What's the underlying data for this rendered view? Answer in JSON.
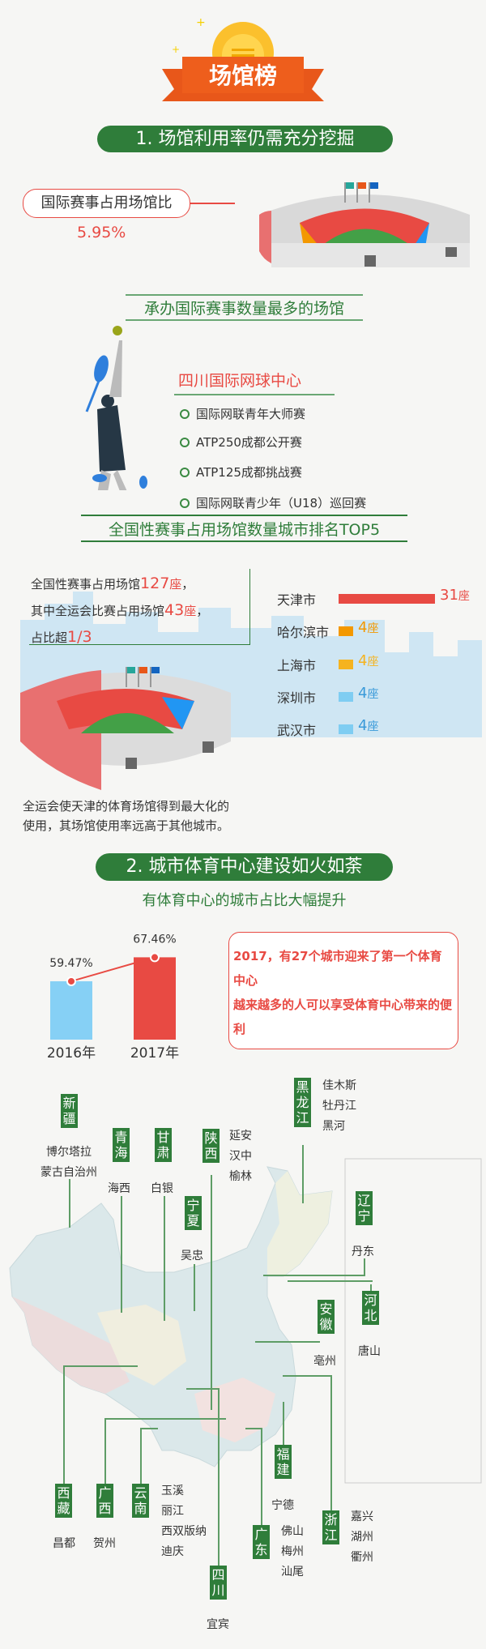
{
  "banner": {
    "title": "场馆榜"
  },
  "section1": {
    "heading": "1. 场馆利用率仍需充分挖掘",
    "callout": "国际赛事占用场馆比",
    "callout_value": "5.95%",
    "most_events": {
      "heading": "承办国际赛事数量最多的场馆",
      "venue": "四川国际网球中心",
      "events": [
        "国际网联青年大师赛",
        "ATP250成都公开赛",
        "ATP125成都挑战赛",
        "国际网联青少年（U18）巡回赛"
      ]
    },
    "top5": {
      "heading": "全国性赛事占用场馆数量城市排名TOP5",
      "note_prefix1": "全国性赛事占用场馆",
      "note_num1": "127",
      "note_unit1": "座",
      "note_suffix1": "，",
      "note_prefix2": "其中全运会比赛占用场馆",
      "note_num2": "43",
      "note_unit2": "座",
      "note_suffix2": "，",
      "note_prefix3": "占比超",
      "note_num3": "1/3",
      "unit": "座",
      "cities": [
        {
          "name": "天津市",
          "value": 31,
          "label": "31",
          "color": "#e84a43"
        },
        {
          "name": "哈尔滨市",
          "value": 4,
          "label": "4",
          "color": "#f39800"
        },
        {
          "name": "上海市",
          "value": 4,
          "label": "4",
          "color": "#f5b31f"
        },
        {
          "name": "深圳市",
          "value": 4,
          "label": "4",
          "color": "#7fcdf2"
        },
        {
          "name": "武汉市",
          "value": 4,
          "label": "4",
          "color": "#7fcdf2"
        }
      ],
      "paragraph": "全运会使天津的体育场馆得到最大化的使用，其场馆使用率远高于其他城市。"
    }
  },
  "section2": {
    "heading": "2. 城市体育中心建设如火如荼",
    "subheading": "有体育中心的城市占比大幅提升",
    "chart_data": {
      "type": "bar",
      "categories": [
        "2016年",
        "2017年"
      ],
      "values": [
        59.47,
        67.46
      ],
      "labels": [
        "59.47%",
        "67.46%"
      ],
      "colors": [
        "#86d0f5",
        "#e84a43"
      ]
    },
    "note_line1": "2017，有27个城市迎来了第一个体育中心",
    "note_line2": "越来越多的人可以享受体育中心带来的便利",
    "map": [
      {
        "province": "新疆",
        "cities": "博尔塔拉\n蒙古自治州"
      },
      {
        "province": "青海",
        "cities": "海西"
      },
      {
        "province": "甘肃",
        "cities": "白银"
      },
      {
        "province": "陕西",
        "cities": "延安\n汉中\n榆林"
      },
      {
        "province": "宁夏",
        "cities": "吴忠"
      },
      {
        "province": "黑龙江",
        "cities": "佳木斯\n牡丹江\n黑河"
      },
      {
        "province": "辽宁",
        "cities": "丹东"
      },
      {
        "province": "河北",
        "cities": "唐山"
      },
      {
        "province": "安徽",
        "cities": "亳州"
      },
      {
        "province": "西藏",
        "cities": "昌都"
      },
      {
        "province": "广西",
        "cities": "贺州"
      },
      {
        "province": "云南",
        "cities": "玉溪\n丽江\n西双版纳\n迪庆"
      },
      {
        "province": "四川",
        "cities": "宜宾"
      },
      {
        "province": "广东",
        "cities": "佛山\n梅州\n汕尾"
      },
      {
        "province": "福建",
        "cities": "宁德"
      },
      {
        "province": "浙江",
        "cities": "嘉兴\n湖州\n衢州"
      }
    ]
  }
}
